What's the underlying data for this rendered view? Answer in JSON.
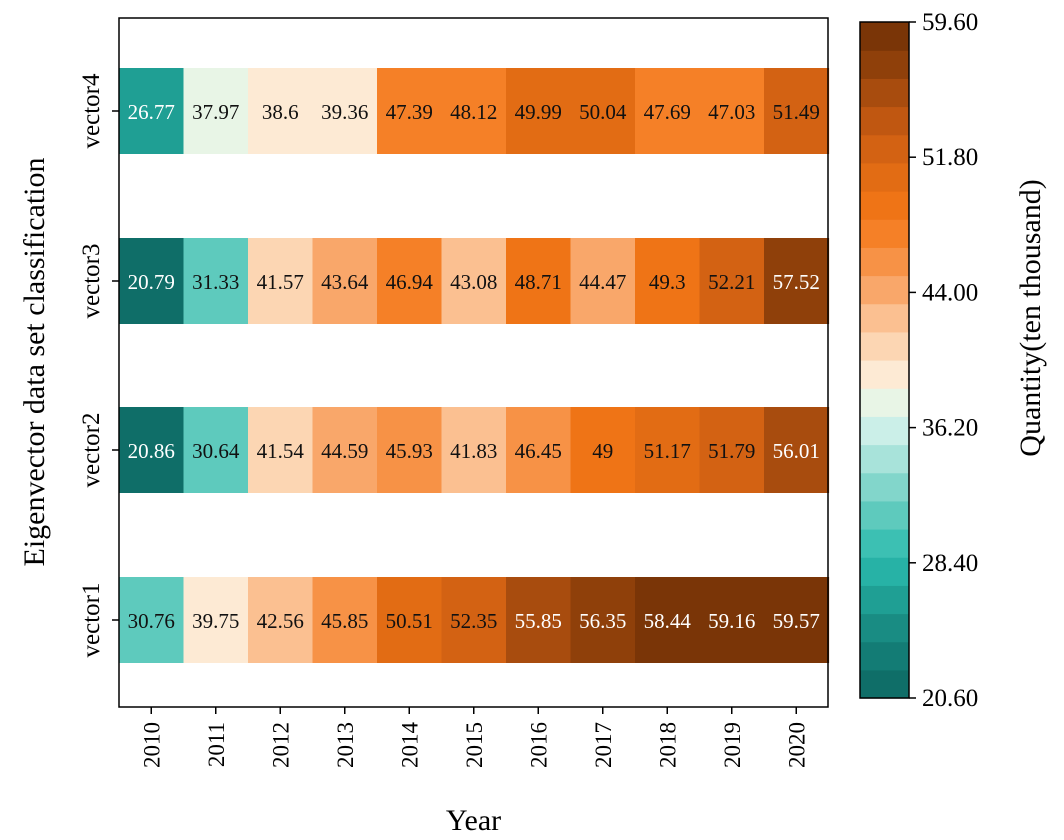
{
  "chart_data": {
    "type": "heatmap",
    "xlabel": "Year",
    "ylabel": "Eigenvector data set classification",
    "x_categories": [
      "2010",
      "2011",
      "2012",
      "2013",
      "2014",
      "2015",
      "2016",
      "2017",
      "2018",
      "2019",
      "2020"
    ],
    "y_categories": [
      "vector4",
      "vector3",
      "vector2",
      "vector1"
    ],
    "values": [
      [
        26.77,
        37.97,
        38.6,
        39.36,
        47.39,
        48.12,
        49.99,
        50.04,
        47.69,
        47.03,
        51.49
      ],
      [
        20.79,
        31.33,
        41.57,
        43.64,
        46.94,
        43.08,
        48.71,
        44.47,
        49.3,
        52.21,
        57.52
      ],
      [
        20.86,
        30.64,
        41.54,
        44.59,
        45.93,
        41.83,
        46.45,
        49,
        51.17,
        51.79,
        56.01
      ],
      [
        30.76,
        39.75,
        42.56,
        45.85,
        50.51,
        52.35,
        55.85,
        56.35,
        58.44,
        59.16,
        59.57
      ]
    ],
    "cell_labels": [
      [
        "26.77",
        "37.97",
        "38.6",
        "39.36",
        "47.39",
        "48.12",
        "49.99",
        "50.04",
        "47.69",
        "47.03",
        "51.49"
      ],
      [
        "20.79",
        "31.33",
        "41.57",
        "43.64",
        "46.94",
        "43.08",
        "48.71",
        "44.47",
        "49.3",
        "52.21",
        "57.52"
      ],
      [
        "20.86",
        "30.64",
        "41.54",
        "44.59",
        "45.93",
        "41.83",
        "46.45",
        "49",
        "51.17",
        "51.79",
        "56.01"
      ],
      [
        "30.76",
        "39.75",
        "42.56",
        "45.85",
        "50.51",
        "52.35",
        "55.85",
        "56.35",
        "58.44",
        "59.16",
        "59.57"
      ]
    ],
    "colorbar": {
      "label": "Quantity(ten thousand)",
      "min": 20.6,
      "max": 59.6,
      "ticks": [
        20.6,
        28.4,
        36.2,
        44.0,
        51.8,
        59.6
      ],
      "tick_labels": [
        "20.60",
        "28.40",
        "36.20",
        "44.00",
        "51.80",
        "59.60"
      ],
      "colors": [
        "#0f6e68",
        "#137c75",
        "#198c83",
        "#1f9f94",
        "#27b2a6",
        "#3cc0b3",
        "#5ecabd",
        "#82d6cb",
        "#a8e3da",
        "#cbefe8",
        "#e8f5e6",
        "#fdead4",
        "#fcd6b3",
        "#fbc091",
        "#f9a76a",
        "#f79246",
        "#f58027",
        "#ef7416",
        "#e26c14",
        "#d36213",
        "#c05711",
        "#a84c0e",
        "#8f400a",
        "#7a3507"
      ]
    },
    "grid": false,
    "legend": "right colorbar"
  }
}
